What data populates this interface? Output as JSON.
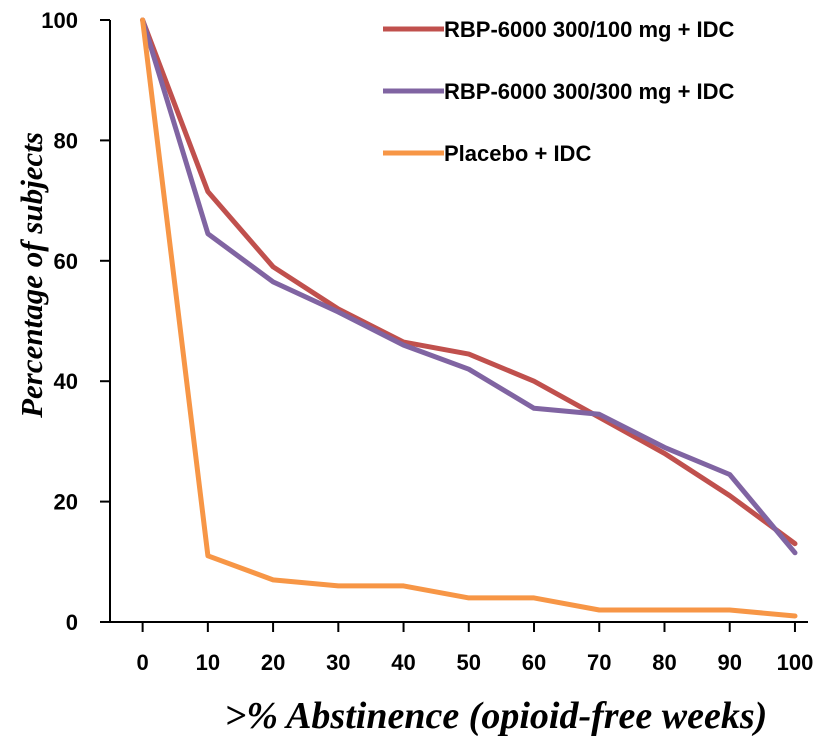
{
  "chart_data": {
    "type": "line",
    "title": "",
    "xlabel": ">% Abstinence (opioid-free weeks)",
    "ylabel": "Percentage of subjects",
    "x": [
      0,
      10,
      20,
      30,
      40,
      50,
      60,
      70,
      80,
      90,
      100
    ],
    "x_ticks": [
      "0",
      "10",
      "20",
      "30",
      "40",
      "50",
      "60",
      "70",
      "80",
      "90",
      "100"
    ],
    "y_ticks": [
      "0",
      "20",
      "40",
      "60",
      "80",
      "100"
    ],
    "xlim": [
      -5,
      102
    ],
    "ylim": [
      0,
      100
    ],
    "grid": false,
    "legend_position": "top-right",
    "series": [
      {
        "name": "RBP-6000 300/100 mg + IDC",
        "color": "#c0504d",
        "values": [
          100,
          71.5,
          59,
          52,
          46.5,
          44.5,
          40,
          34,
          28,
          21,
          13
        ]
      },
      {
        "name": "RBP-6000 300/300 mg + IDC",
        "color": "#8064a2",
        "values": [
          100,
          64.5,
          56.5,
          51.5,
          46,
          42,
          35.5,
          34.5,
          29,
          24.5,
          11.5
        ]
      },
      {
        "name": "Placebo + IDC",
        "color": "#f79646",
        "values": [
          100,
          11,
          7,
          6,
          6,
          4,
          4,
          2,
          2,
          2,
          1
        ]
      }
    ]
  }
}
